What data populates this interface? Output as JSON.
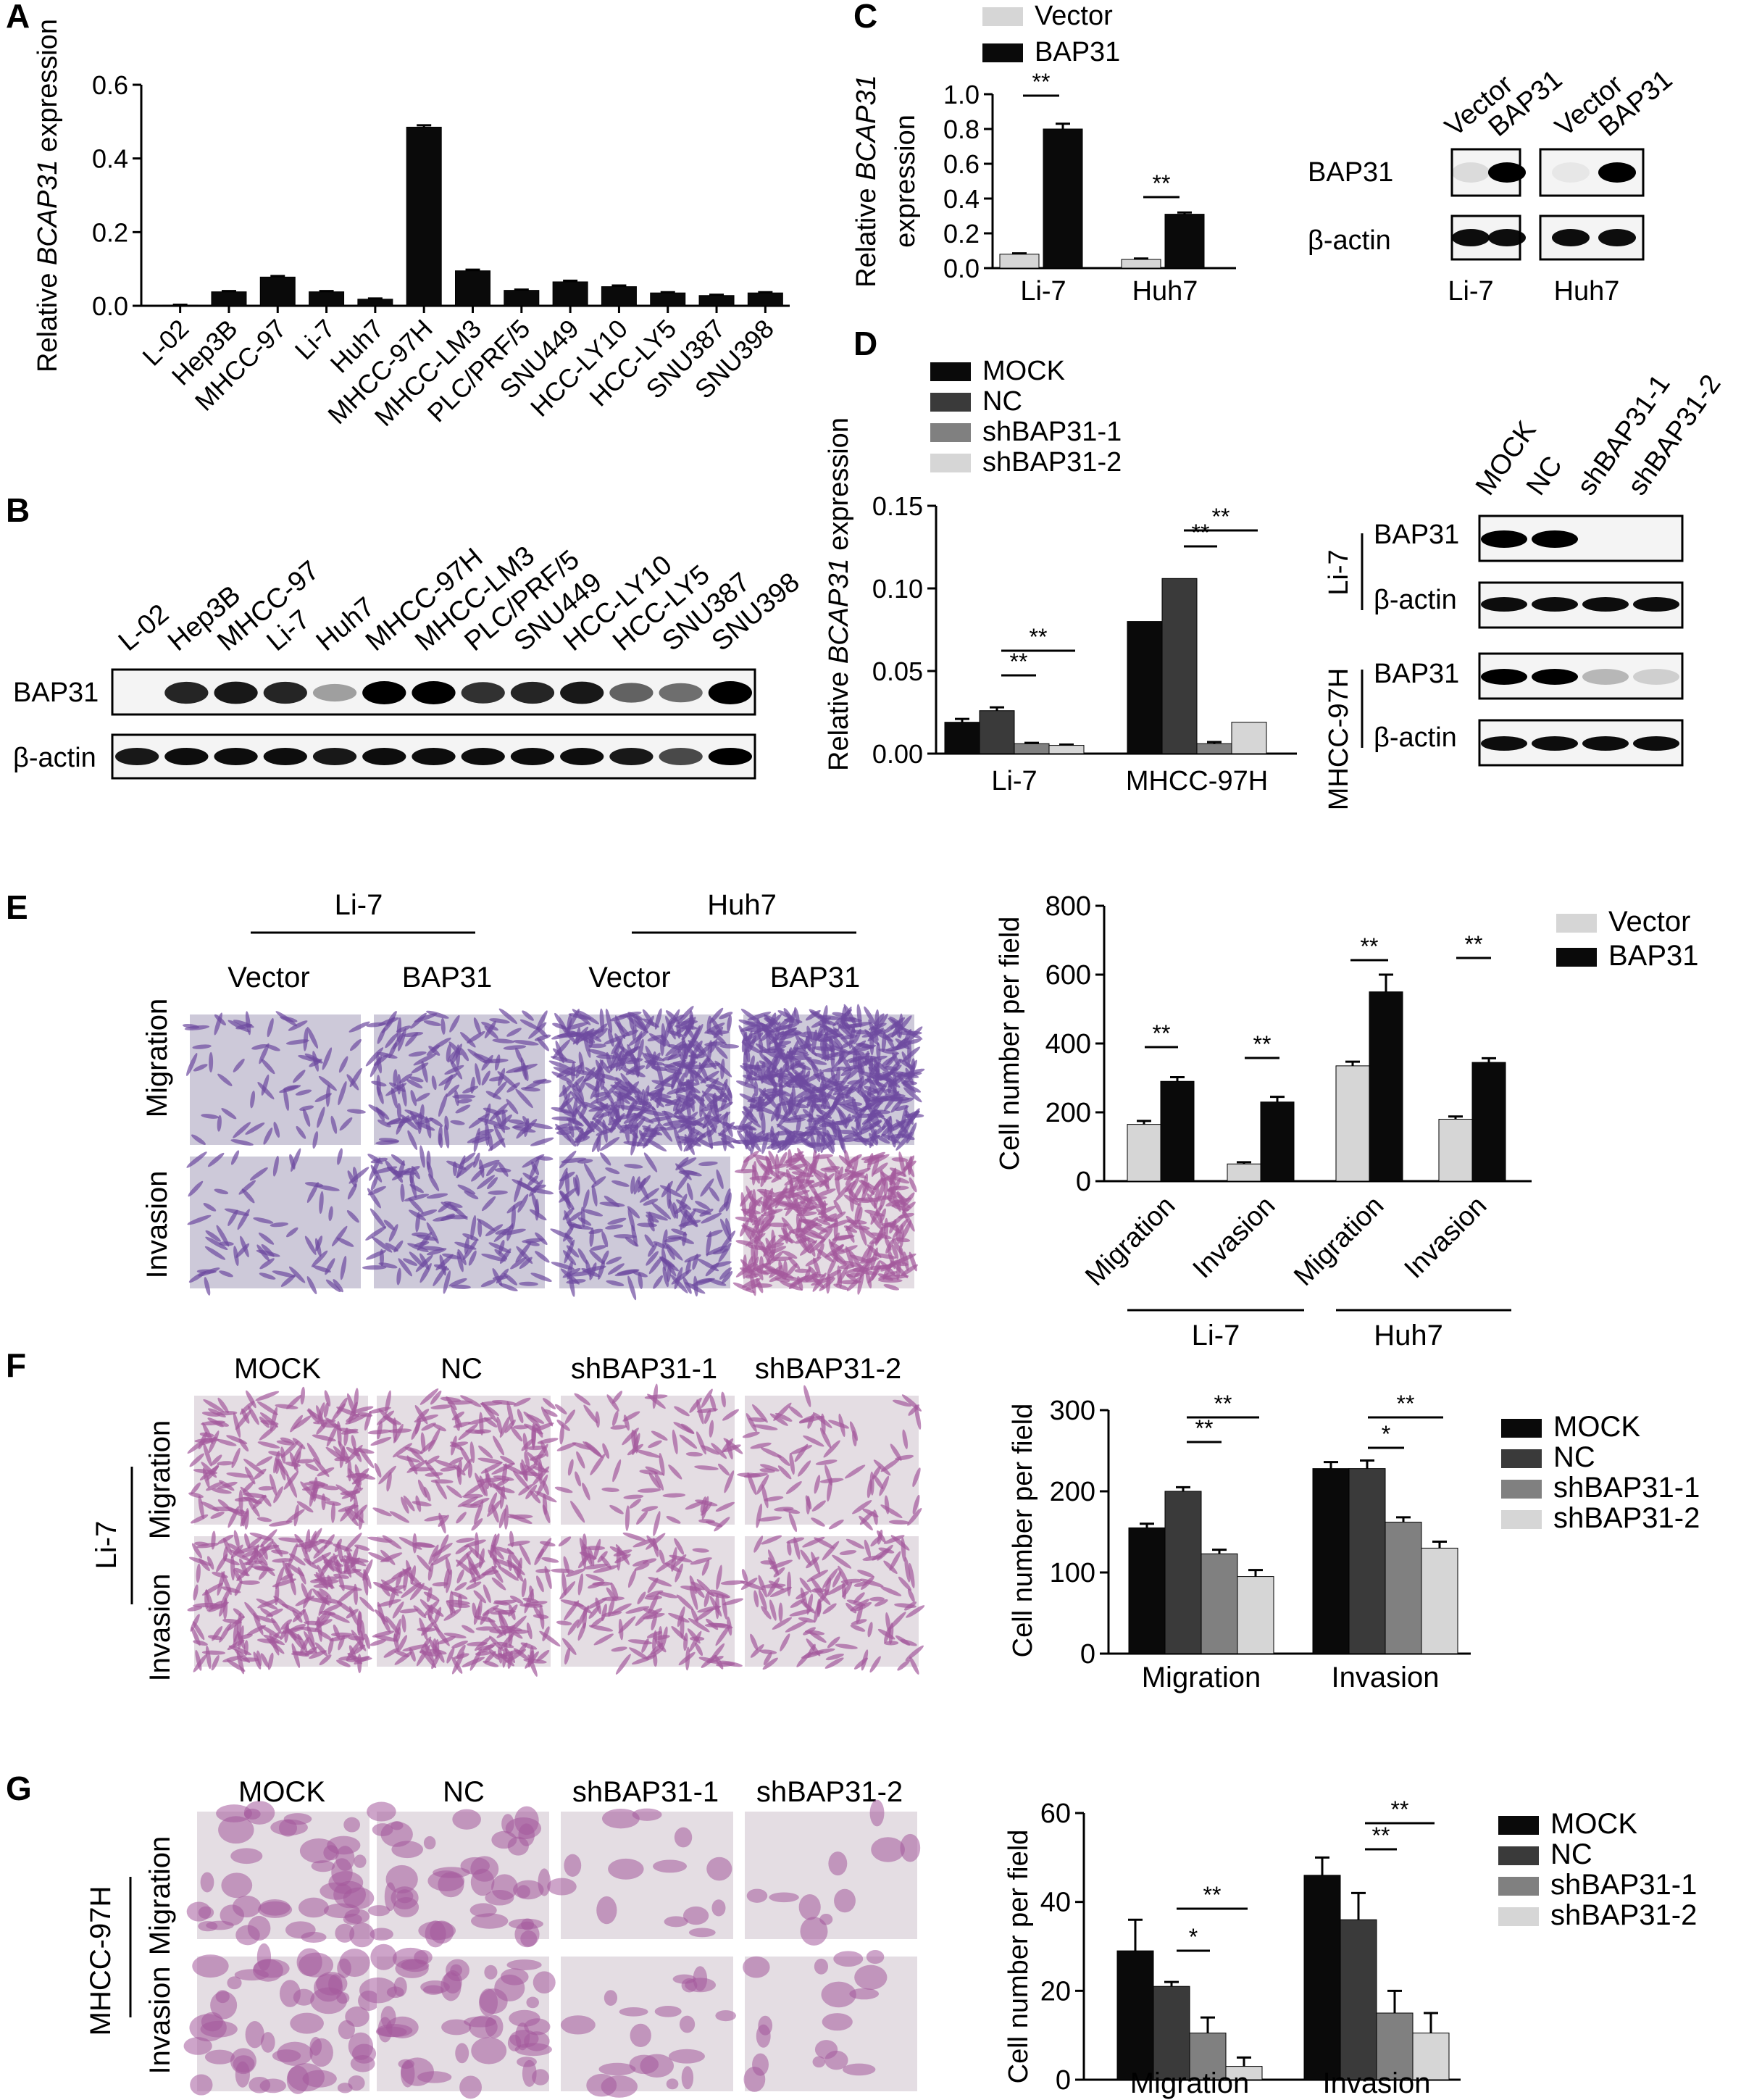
{
  "panel_letters": {
    "A": "A",
    "B": "B",
    "C": "C",
    "D": "D",
    "E": "E",
    "F": "F",
    "G": "G"
  },
  "colors": {
    "black": "#0a0a0a",
    "dark_gray": "#3a3a3a",
    "mid_gray": "#808080",
    "light_gray": "#d6d6d6",
    "purple_stain": "#7a55a8",
    "pink_stain": "#b56aa8"
  },
  "chart_data": [
    {
      "id": "A",
      "type": "bar",
      "ylabel_prefix": "Relative ",
      "ylabel_italic": "BCAP31",
      "ylabel_suffix": " expression",
      "categories": [
        "L-02",
        "Hep3B",
        "MHCC-97",
        "Li-7",
        "Huh7",
        "MHCC-97H",
        "MHCC-LM3",
        "PLC/PRF/5",
        "SNU449",
        "HCC-LY10",
        "HCC-LY5",
        "SNU387",
        "SNU398"
      ],
      "values": [
        0.002,
        0.038,
        0.078,
        0.038,
        0.018,
        0.485,
        0.095,
        0.042,
        0.065,
        0.052,
        0.035,
        0.028,
        0.035
      ],
      "errors": [
        0.001,
        0.002,
        0.003,
        0.002,
        0.002,
        0.005,
        0.003,
        0.002,
        0.003,
        0.003,
        0.002,
        0.002,
        0.002
      ],
      "yticks": [
        "0.0",
        "0.2",
        "0.4",
        "0.6"
      ],
      "ylim": [
        0,
        0.6
      ]
    },
    {
      "id": "C",
      "type": "bar",
      "ylabel_line1_prefix": "Relative ",
      "ylabel_line1_italic": "BCAP31",
      "ylabel_line2": "expression",
      "categories": [
        "Li-7",
        "Huh7"
      ],
      "series": [
        {
          "name": "Vector",
          "values": [
            0.08,
            0.05
          ],
          "errors": [
            0.005,
            0.005
          ]
        },
        {
          "name": "BAP31",
          "values": [
            0.8,
            0.31
          ],
          "errors": [
            0.03,
            0.01
          ]
        }
      ],
      "yticks": [
        "0.0",
        "0.2",
        "0.4",
        "0.6",
        "0.8",
        "1.0"
      ],
      "ylim": [
        0,
        1.0
      ],
      "significance": [
        "**",
        "**"
      ]
    },
    {
      "id": "D",
      "type": "bar",
      "ylabel_prefix": "Relative ",
      "ylabel_italic": "BCAP31",
      "ylabel_suffix": " expression",
      "categories": [
        "Li-7",
        "MHCC-97H"
      ],
      "series": [
        {
          "name": "MOCK",
          "values": [
            0.019,
            0.08
          ]
        },
        {
          "name": "NC",
          "values": [
            0.026,
            0.106
          ]
        },
        {
          "name": "shBAP31-1",
          "values": [
            0.006,
            0.006
          ]
        },
        {
          "name": "shBAP31-2",
          "values": [
            0.005,
            0.019
          ]
        }
      ],
      "errors": [
        [
          0.002,
          0.0
        ],
        [
          0.002,
          0.0
        ],
        [
          0.0005,
          0.001
        ],
        [
          0.0005,
          0.0
        ]
      ],
      "yticks": [
        "0.00",
        "0.05",
        "0.10",
        "0.15"
      ],
      "ylim": [
        0,
        0.15
      ],
      "significance": [
        "**",
        "**",
        "**",
        "**"
      ]
    },
    {
      "id": "E",
      "type": "bar",
      "ylabel": "Cell number per field",
      "categories": [
        "Migration",
        "Invasion",
        "Migration",
        "Invasion"
      ],
      "groups": [
        "Li-7",
        "Huh7"
      ],
      "series": [
        {
          "name": "Vector",
          "values": [
            165,
            50,
            335,
            180
          ],
          "errors": [
            10,
            5,
            12,
            8
          ]
        },
        {
          "name": "BAP31",
          "values": [
            290,
            230,
            550,
            345
          ],
          "errors": [
            12,
            15,
            50,
            12
          ]
        }
      ],
      "yticks": [
        "0",
        "200",
        "400",
        "600",
        "800"
      ],
      "ylim": [
        0,
        800
      ],
      "significance": [
        "**",
        "**",
        "**",
        "**"
      ]
    },
    {
      "id": "F",
      "type": "bar",
      "ylabel": "Cell number per field",
      "categories": [
        "Migration",
        "Invasion"
      ],
      "series": [
        {
          "name": "MOCK",
          "values": [
            155,
            228
          ],
          "errors": [
            5,
            8
          ]
        },
        {
          "name": "NC",
          "values": [
            200,
            228
          ],
          "errors": [
            5,
            10
          ]
        },
        {
          "name": "shBAP31-1",
          "values": [
            123,
            162
          ],
          "errors": [
            5,
            6
          ]
        },
        {
          "name": "shBAP31-2",
          "values": [
            95,
            130
          ],
          "errors": [
            8,
            8
          ]
        }
      ],
      "yticks": [
        "0",
        "100",
        "200",
        "300"
      ],
      "ylim": [
        0,
        300
      ],
      "significance": [
        "**",
        "**",
        "*",
        "**"
      ]
    },
    {
      "id": "G",
      "type": "bar",
      "ylabel": "Cell number per field",
      "categories": [
        "Migration",
        "Invasion"
      ],
      "series": [
        {
          "name": "MOCK",
          "values": [
            29,
            46
          ],
          "errors": [
            7,
            4
          ]
        },
        {
          "name": "NC",
          "values": [
            21,
            36
          ],
          "errors": [
            1,
            6
          ]
        },
        {
          "name": "shBAP31-1",
          "values": [
            10.5,
            15
          ],
          "errors": [
            3.5,
            5
          ]
        },
        {
          "name": "shBAP31-2",
          "values": [
            3,
            10.5
          ],
          "errors": [
            2,
            4.5
          ]
        }
      ],
      "yticks": [
        "0",
        "20",
        "40",
        "60"
      ],
      "ylim": [
        0,
        60
      ],
      "significance": [
        "*",
        "**",
        "**",
        "**"
      ]
    }
  ],
  "blot_B": {
    "lanes": [
      "L-02",
      "Hep3B",
      "MHCC-97",
      "Li-7",
      "Huh7",
      "MHCC-97H",
      "MHCC-LM3",
      "PLC/PRF/5",
      "SNU449",
      "HCC-LY10",
      "HCC-LY5",
      "SNU387",
      "SNU398"
    ],
    "rows": [
      "BAP31",
      "β-actin"
    ],
    "bap31_intensity": [
      0.0,
      0.85,
      0.9,
      0.85,
      0.35,
      1.0,
      1.0,
      0.8,
      0.85,
      0.9,
      0.6,
      0.55,
      1.0
    ],
    "actin_intensity": [
      0.9,
      0.95,
      0.95,
      0.95,
      0.9,
      0.95,
      0.95,
      0.95,
      0.95,
      0.95,
      0.9,
      0.7,
      1.0
    ]
  },
  "blot_C": {
    "lanes": [
      "Vector",
      "BAP31",
      "Vector",
      "BAP31"
    ],
    "rows": [
      "BAP31",
      "β-actin"
    ],
    "cells": [
      "Li-7",
      "Huh7"
    ],
    "bap31_intensity": [
      0.1,
      1.0,
      0.05,
      1.0
    ],
    "actin_intensity": [
      0.95,
      0.95,
      0.95,
      0.95
    ]
  },
  "blot_D": {
    "lanes": [
      "MOCK",
      "NC",
      "shBAP31-1",
      "shBAP31-2"
    ],
    "rows": [
      "BAP31",
      "β-actin"
    ],
    "cells": [
      "Li-7",
      "MHCC-97H"
    ],
    "li7_bap31_intensity": [
      1.0,
      1.0,
      0.0,
      0.0
    ],
    "mhcc_bap31_intensity": [
      1.0,
      1.0,
      0.25,
      0.15
    ],
    "actin_intensity": [
      0.95,
      0.95,
      0.95,
      0.95
    ]
  },
  "micro_E": {
    "cells": [
      "Li-7",
      "Huh7"
    ],
    "columns": [
      "Vector",
      "BAP31",
      "Vector",
      "BAP31"
    ],
    "rows": [
      "Migration",
      "Invasion"
    ]
  },
  "micro_F": {
    "cell": "Li-7",
    "columns": [
      "MOCK",
      "NC",
      "shBAP31-1",
      "shBAP31-2"
    ],
    "rows": [
      "Migration",
      "Invasion"
    ]
  },
  "micro_G": {
    "cell": "MHCC-97H",
    "columns": [
      "MOCK",
      "NC",
      "shBAP31-1",
      "shBAP31-2"
    ],
    "rows": [
      "Migration",
      "Invasion"
    ]
  }
}
